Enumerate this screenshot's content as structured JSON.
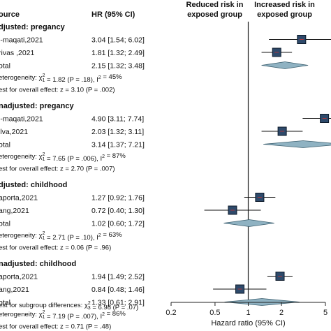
{
  "chart_data": {
    "type": "forest",
    "header_left": "ource",
    "header_hr": "HR (95% CI)",
    "header_reduced": [
      "Reduced risk in",
      "exposed group"
    ],
    "header_increased": [
      "Increased risk in",
      "exposed group"
    ],
    "xlabel": "Hazard ratio (95% CI)",
    "xscale": "log",
    "xlim": [
      0.2,
      5
    ],
    "xticks": [
      0.2,
      0.5,
      1,
      2,
      5
    ],
    "xtick_labels": [
      "0.2",
      "0.5",
      "1",
      "2",
      "5"
    ],
    "reference_line": 1,
    "groups": [
      {
        "title": "djusted: pregancy",
        "studies": [
          {
            "name": "l-maqati,2021",
            "hr_text": "3.04 [1.54; 6.02]",
            "hr": 3.04,
            "lo": 1.54,
            "hi": 6.02
          },
          {
            "name": "rivas ,2021",
            "hr_text": "1.81 [1.32; 2.49]",
            "hr": 1.81,
            "lo": 1.32,
            "hi": 2.49
          }
        ],
        "total": {
          "name": "otal",
          "hr_text": "2.15 [1.32; 3.48]",
          "hr": 2.15,
          "lo": 1.32,
          "hi": 3.48
        },
        "heterogeneity": "eterogeneity: χ²₁ = 1.82 (P = .18), I² = 45%",
        "overall": "est for overall effect: z = 3.10 (P = .002)"
      },
      {
        "title": "nadjusted: pregancy",
        "studies": [
          {
            "name": "l-maqati,2021",
            "hr_text": "4.90 [3.11; 7.74]",
            "hr": 4.9,
            "lo": 3.11,
            "hi": 7.74
          },
          {
            "name": "ilva,2021",
            "hr_text": "2.03 [1.32; 3.11]",
            "hr": 2.03,
            "lo": 1.32,
            "hi": 3.11
          }
        ],
        "total": {
          "name": "otal",
          "hr_text": "3.14 [1.37; 7.21]",
          "hr": 3.14,
          "lo": 1.37,
          "hi": 7.21
        },
        "heterogeneity": "eterogeneity: χ²₁ = 7.65 (P = .006), I² = 87%",
        "overall": "est for overall effect: z = 2.70 (P = .007)"
      },
      {
        "title": "djusted: childhood",
        "studies": [
          {
            "name": "aporta,2021",
            "hr_text": "1.27 [0.92; 1.76]",
            "hr": 1.27,
            "lo": 0.92,
            "hi": 1.76
          },
          {
            "name": "ang,2021",
            "hr_text": "0.72 [0.40; 1.30]",
            "hr": 0.72,
            "lo": 0.4,
            "hi": 1.3
          }
        ],
        "total": {
          "name": "otal",
          "hr_text": "1.02 [0.60; 1.72]",
          "hr": 1.02,
          "lo": 0.6,
          "hi": 1.72
        },
        "heterogeneity": "eterogeneity: χ²₁ = 2.71 (P = .10), I² = 63%",
        "overall": "est for overall effect: z = 0.06 (P = .96)"
      },
      {
        "title": "nadjusted: childhood",
        "studies": [
          {
            "name": "aporta,2021",
            "hr_text": "1.94 [1.49; 2.52]",
            "hr": 1.94,
            "lo": 1.49,
            "hi": 2.52
          },
          {
            "name": "ang,2021",
            "hr_text": "0.84 [0.48; 1.46]",
            "hr": 0.84,
            "lo": 0.48,
            "hi": 1.46
          }
        ],
        "total": {
          "name": "otal",
          "hr_text": "1.33 [0.61; 2.91]",
          "hr": 1.33,
          "lo": 0.61,
          "hi": 2.91
        },
        "heterogeneity": "eterogeneity: χ²₁ = 7.19 (P = .007), I² = 86%",
        "overall": "est for overall effect: z = 0.71 (P = .48)"
      }
    ],
    "subgroup_test": "est for subgroup differences: χ²₃ = 6.98 (P = .07)",
    "colors": {
      "box_fill": "#2e4a6b",
      "box_stroke": "#0d1a2a",
      "diamond_fill": "#8fb2c2",
      "diamond_stroke": "#3d6070",
      "ci_line": "#111111",
      "marker_cross": "#cc3333",
      "text": "#111111"
    }
  }
}
